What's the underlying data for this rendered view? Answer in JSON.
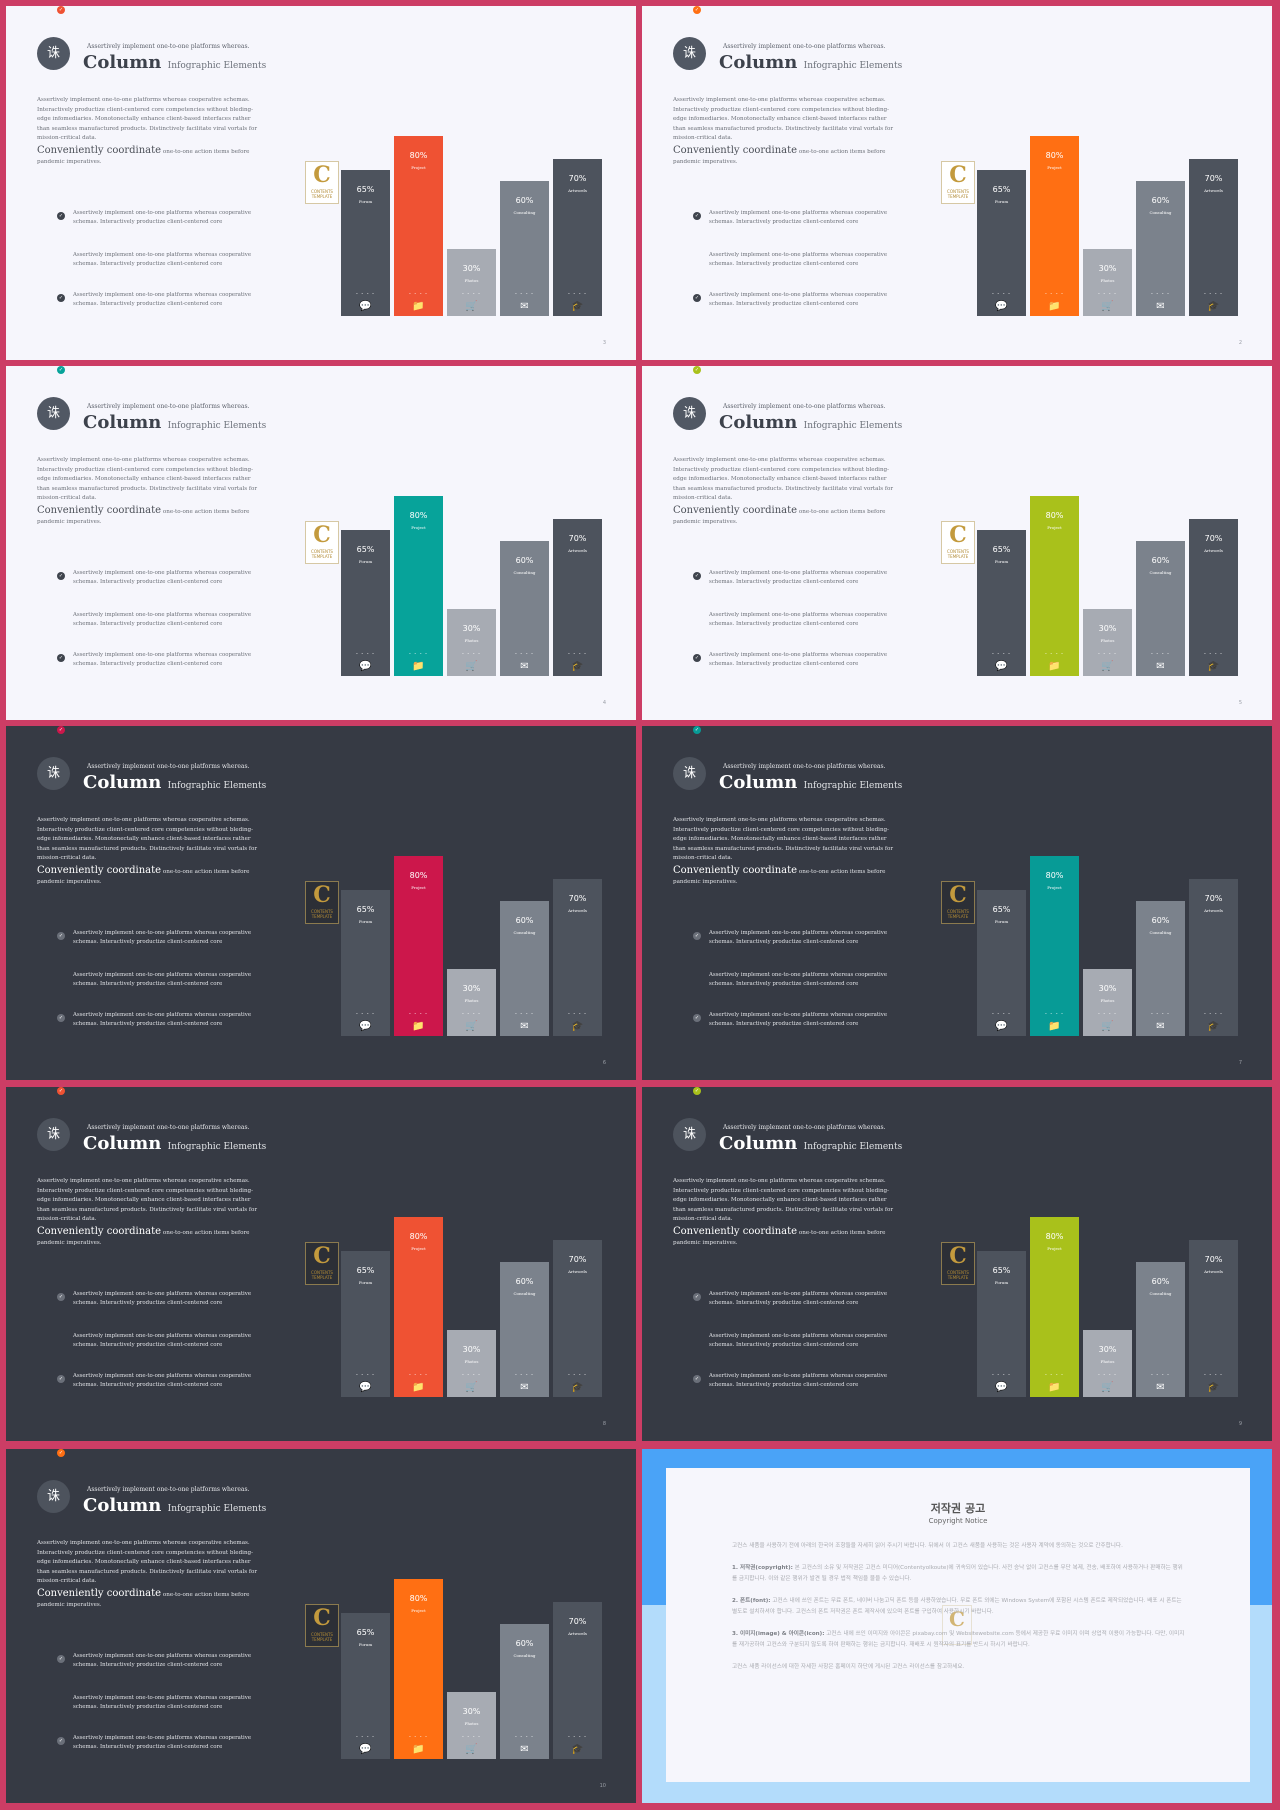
{
  "slide_common": {
    "logo_glyph": "诛",
    "subtitle_top": "Assertively implement one-to-one platforms whereas.",
    "title": "Column",
    "title_sub": "Infographic Elements",
    "body": "Assertively implement one-to-one platforms whereas cooperative schemas. Interactively productize client-centered core competencies without bleding-edge infomediaries. Monotonectally enhance client-based interfaces rather than seamless manufactured products. Distinctively facilitate viral vortals for mission-critical data.",
    "coord_big": "Conveniently coordinate",
    "coord_small": "one-to-one action items before pandemic imperatives.",
    "list": [
      "Assertively implement one-to-one platforms whereas cooperative schemas. Interactively productize client-centered core",
      "Assertively implement one-to-one platforms whereas cooperative schemas. Interactively productize client-centered core",
      "Assertively implement one-to-one platforms whereas cooperative schemas. Interactively productize client-centered core"
    ],
    "check_icon": "✓",
    "badge_letter": "C",
    "badge_word": "CONTENTS",
    "badge_word2": "TEMPLATE"
  },
  "chart_data": {
    "type": "bar",
    "categories": [
      "Forum",
      "Project",
      "Photos",
      "Consulting",
      "Artwords"
    ],
    "values": [
      65,
      80,
      30,
      60,
      70
    ],
    "value_labels": [
      "65%",
      "80%",
      "30%",
      "60%",
      "70%"
    ],
    "ylim": [
      0,
      100
    ],
    "placeholder": "- - - -",
    "icons": [
      "chat-icon",
      "folder-icon",
      "cart-icon",
      "mail-icon",
      "graduation-icon"
    ],
    "icon_glyphs": [
      "💬",
      "📁",
      "🛒",
      "✉",
      "🎓"
    ],
    "bar_colors": [
      "#4d535d",
      "ACCENT",
      "#a7abb3",
      "#7b828c",
      "#4d535d"
    ]
  },
  "slides": [
    {
      "theme": "light",
      "accent": "#ef5233",
      "page": "3"
    },
    {
      "theme": "light",
      "accent": "#ff6f13",
      "page": "2"
    },
    {
      "theme": "light",
      "accent": "#07a39a",
      "page": "4"
    },
    {
      "theme": "light",
      "accent": "#a9c11b",
      "page": "5"
    },
    {
      "theme": "dark",
      "accent": "#cc174b",
      "page": "6"
    },
    {
      "theme": "dark",
      "accent": "#079b96",
      "page": "7"
    },
    {
      "theme": "dark",
      "accent": "#ef5233",
      "page": "8"
    },
    {
      "theme": "dark",
      "accent": "#a9c11b",
      "page": "9"
    },
    {
      "theme": "dark",
      "accent": "#ff6f13",
      "page": "10"
    }
  ],
  "notice": {
    "title": "저작권 공고",
    "subtitle": "Copyright Notice",
    "intro": "고컨스 새품을 사용하기 전에 아래의 한국어 조항들을 자세히 읽어 주시기 바랍니다. 뒤에서 이 고컨스 새품을 사용하는 것은 사용자 계약에 동의하는 것으로 간주합니다.",
    "p1_label": "1. 저작권(copyright):",
    "p1": "본 고컨스의 소유 및 저작권은 고컨스 미디어(Contentyolkoute)에 귀속되어 있습니다. 사전 승낙 없이 고컨스를 무단 복제, 전송, 배포하여 사용하거나 판매하는 행위를 금지합니다. 이와 같은 행위가 발견 될 경우 법적 책임을 물을 수 있습니다.",
    "p2_label": "2. 폰트(font):",
    "p2": "고컨스 내에 쓰인 폰트는 무료 폰트, 네이버 나눔고딕 폰트 등을 사용하였습니다. 무료 폰트 외에는 Windows System에 포함된 시스템 폰트로 제작되었습니다. 배포 시 폰트는 별도로 설치하셔야 합니다. 고컨스의 폰트 저작권은 폰트 제작사에 있으며 폰트를 구입하여 사용하시기 바랍니다.",
    "p3_label": "3. 이미지(image) & 아이콘(icon):",
    "p3": "고컨스 내에 쓰인 이미지와 아이콘은 pixabay.com 및 Websitewebsite.com 등에서 제공한 무료 이미지 이며 상업적 이용이 가능합니다. 다만, 이미지를 재가공하여 고컨스와 구분되지 않도록 하여 판매하는 행위는 금지합니다. 재배포 시 원작자의 표기를 반드시 하시기 바랍니다.",
    "outro": "고컨스 새품 라이선스에 대한 자세한 사항은 홈페이지 하단에 게시된 고컨스 라이선스를 참고하세요."
  }
}
